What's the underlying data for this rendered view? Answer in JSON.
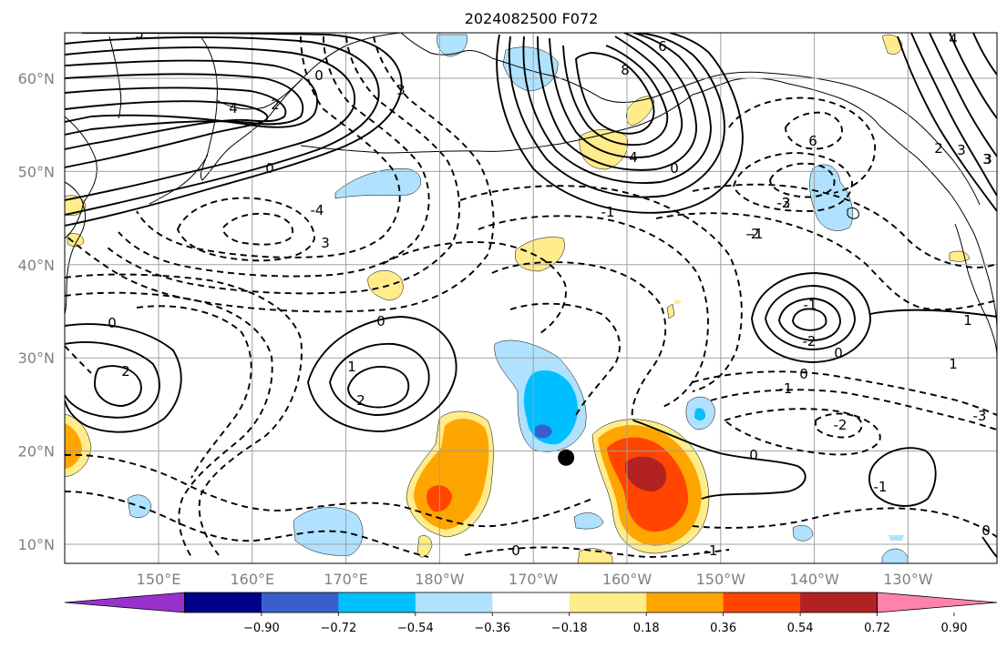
{
  "title": "2024082500 F072",
  "x_ticks": [
    "150°E",
    "160°E",
    "170°E",
    "180°W",
    "170°W",
    "160°W",
    "150°W",
    "140°W",
    "130°W"
  ],
  "y_ticks": [
    "60°N",
    "50°N",
    "40°N",
    "30°N",
    "20°N",
    "10°N"
  ],
  "colorbar": {
    "tick_labels": [
      "−0.90",
      "−0.72",
      "−0.54",
      "−0.36",
      "−0.18",
      "0.18",
      "0.36",
      "0.54",
      "0.72",
      "0.90"
    ],
    "colors": [
      "#9932cc",
      "#00008b",
      "#3a5fcd",
      "#00bfff",
      "#b0e2ff",
      "#ffffff",
      "#ffec8b",
      "#ffa500",
      "#ff4500",
      "#b22222",
      "#ff82ab"
    ]
  },
  "marker": {
    "lon": -166.5,
    "lat": 19.3,
    "color": "#000000"
  },
  "contour_labels": [
    "3",
    "4",
    "0",
    "2",
    "3",
    "6",
    "8",
    "4",
    "0",
    "6",
    "4",
    "3",
    "2",
    "3",
    "-1",
    "-2",
    "-3",
    "0",
    "0",
    "1",
    "2",
    "0",
    "-1",
    "-2",
    "0",
    "-1",
    "1",
    "2",
    "-2",
    "0",
    "-1",
    "0",
    "0",
    "-1",
    "0",
    "1",
    "-3",
    "-2",
    "-1",
    "3",
    "3",
    "-4"
  ]
}
